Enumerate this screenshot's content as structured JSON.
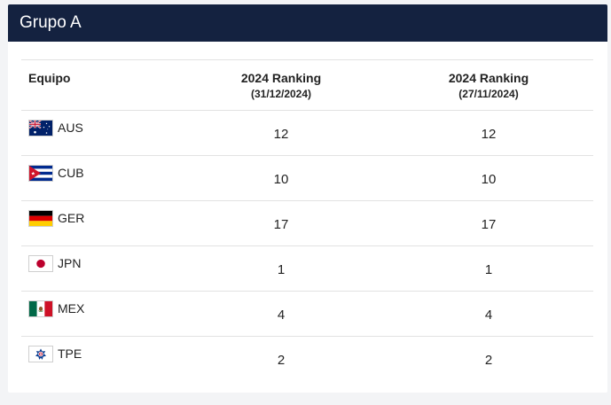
{
  "header": {
    "title": "Grupo A"
  },
  "table": {
    "columns": {
      "team": "Equipo",
      "rank1_title": "2024 Ranking",
      "rank1_date": "(31/12/2024)",
      "rank2_title": "2024 Ranking",
      "rank2_date": "(27/11/2024)"
    },
    "rows": [
      {
        "code": "AUS",
        "flag": "australia-flag-icon",
        "rank1": "12",
        "rank2": "12"
      },
      {
        "code": "CUB",
        "flag": "cuba-flag-icon",
        "rank1": "10",
        "rank2": "10"
      },
      {
        "code": "GER",
        "flag": "germany-flag-icon",
        "rank1": "17",
        "rank2": "17"
      },
      {
        "code": "JPN",
        "flag": "japan-flag-icon",
        "rank1": "1",
        "rank2": "1"
      },
      {
        "code": "MEX",
        "flag": "mexico-flag-icon",
        "rank1": "4",
        "rank2": "4"
      },
      {
        "code": "TPE",
        "flag": "chinese-taipei-flag-icon",
        "rank1": "2",
        "rank2": "2"
      }
    ]
  },
  "colors": {
    "header_bg": "#142240",
    "header_text": "#ffffff",
    "divider": "#e2e2e2"
  }
}
